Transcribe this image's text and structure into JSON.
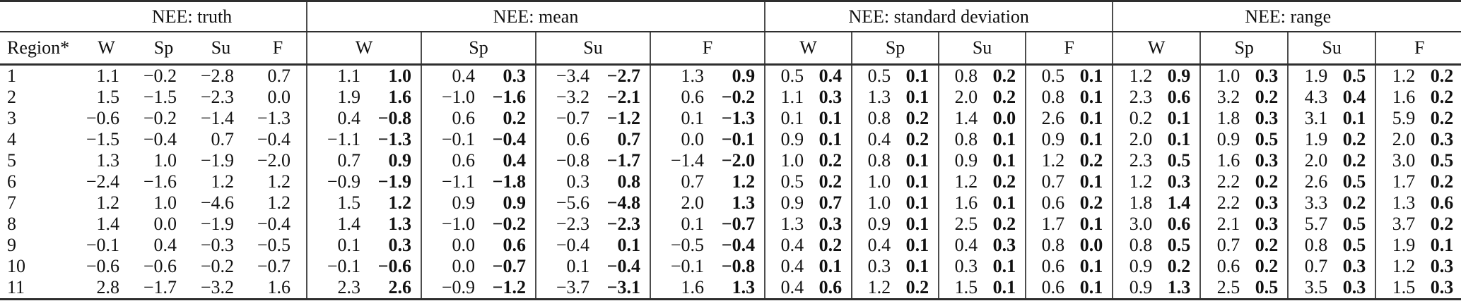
{
  "table": {
    "region_header": "Region*",
    "groups": [
      {
        "id": "truth",
        "label": "NEE: truth",
        "seasons": [
          "W",
          "Sp",
          "Su",
          "F"
        ]
      },
      {
        "id": "mean",
        "label": "NEE: mean",
        "seasons": [
          "W",
          "Sp",
          "Su",
          "F"
        ]
      },
      {
        "id": "sd",
        "label": "NEE: standard deviation",
        "seasons": [
          "W",
          "Sp",
          "Su",
          "F"
        ]
      },
      {
        "id": "range",
        "label": "NEE: range",
        "seasons": [
          "W",
          "Sp",
          "Su",
          "F"
        ]
      }
    ],
    "rows": [
      {
        "region": "1",
        "truth": [
          "1.1",
          "−0.2",
          "−2.8",
          "0.7"
        ],
        "mean": [
          [
            "1.1",
            "1.0"
          ],
          [
            "0.4",
            "0.3"
          ],
          [
            "−3.4",
            "−2.7"
          ],
          [
            "1.3",
            "0.9"
          ]
        ],
        "sd": [
          [
            "0.5",
            "0.4"
          ],
          [
            "0.5",
            "0.1"
          ],
          [
            "0.8",
            "0.2"
          ],
          [
            "0.5",
            "0.1"
          ]
        ],
        "range": [
          [
            "1.2",
            "0.9"
          ],
          [
            "1.0",
            "0.3"
          ],
          [
            "1.9",
            "0.5"
          ],
          [
            "1.2",
            "0.2"
          ]
        ]
      },
      {
        "region": "2",
        "truth": [
          "1.5",
          "−1.5",
          "−2.3",
          "0.0"
        ],
        "mean": [
          [
            "1.9",
            "1.6"
          ],
          [
            "−1.0",
            "−1.6"
          ],
          [
            "−3.2",
            "−2.1"
          ],
          [
            "0.6",
            "−0.2"
          ]
        ],
        "sd": [
          [
            "1.1",
            "0.3"
          ],
          [
            "1.3",
            "0.1"
          ],
          [
            "2.0",
            "0.2"
          ],
          [
            "0.8",
            "0.1"
          ]
        ],
        "range": [
          [
            "2.3",
            "0.6"
          ],
          [
            "3.2",
            "0.2"
          ],
          [
            "4.3",
            "0.4"
          ],
          [
            "1.6",
            "0.2"
          ]
        ]
      },
      {
        "region": "3",
        "truth": [
          "−0.6",
          "−0.2",
          "−1.4",
          "−1.3"
        ],
        "mean": [
          [
            "0.4",
            "−0.8"
          ],
          [
            "0.6",
            "0.2"
          ],
          [
            "−0.7",
            "−1.2"
          ],
          [
            "0.1",
            "−1.3"
          ]
        ],
        "sd": [
          [
            "0.1",
            "0.1"
          ],
          [
            "0.8",
            "0.2"
          ],
          [
            "1.4",
            "0.0"
          ],
          [
            "2.6",
            "0.1"
          ]
        ],
        "range": [
          [
            "0.2",
            "0.1"
          ],
          [
            "1.8",
            "0.3"
          ],
          [
            "3.1",
            "0.1"
          ],
          [
            "5.9",
            "0.2"
          ]
        ]
      },
      {
        "region": "4",
        "truth": [
          "−1.5",
          "−0.4",
          "0.7",
          "−0.4"
        ],
        "mean": [
          [
            "−1.1",
            "−1.3"
          ],
          [
            "−0.1",
            "−0.4"
          ],
          [
            "0.6",
            "0.7"
          ],
          [
            "0.0",
            "−0.1"
          ]
        ],
        "sd": [
          [
            "0.9",
            "0.1"
          ],
          [
            "0.4",
            "0.2"
          ],
          [
            "0.8",
            "0.1"
          ],
          [
            "0.9",
            "0.1"
          ]
        ],
        "range": [
          [
            "2.0",
            "0.1"
          ],
          [
            "0.9",
            "0.5"
          ],
          [
            "1.9",
            "0.2"
          ],
          [
            "2.0",
            "0.3"
          ]
        ]
      },
      {
        "region": "5",
        "truth": [
          "1.3",
          "1.0",
          "−1.9",
          "−2.0"
        ],
        "mean": [
          [
            "0.7",
            "0.9"
          ],
          [
            "0.6",
            "0.4"
          ],
          [
            "−0.8",
            "−1.7"
          ],
          [
            "−1.4",
            "−2.0"
          ]
        ],
        "sd": [
          [
            "1.0",
            "0.2"
          ],
          [
            "0.8",
            "0.1"
          ],
          [
            "0.9",
            "0.1"
          ],
          [
            "1.2",
            "0.2"
          ]
        ],
        "range": [
          [
            "2.3",
            "0.5"
          ],
          [
            "1.6",
            "0.3"
          ],
          [
            "2.0",
            "0.2"
          ],
          [
            "3.0",
            "0.5"
          ]
        ]
      },
      {
        "region": "6",
        "truth": [
          "−2.4",
          "−1.6",
          "1.2",
          "1.2"
        ],
        "mean": [
          [
            "−0.9",
            "−1.9"
          ],
          [
            "−1.1",
            "−1.8"
          ],
          [
            "0.3",
            "0.8"
          ],
          [
            "0.7",
            "1.2"
          ]
        ],
        "sd": [
          [
            "0.5",
            "0.2"
          ],
          [
            "1.0",
            "0.1"
          ],
          [
            "1.2",
            "0.2"
          ],
          [
            "0.7",
            "0.1"
          ]
        ],
        "range": [
          [
            "1.2",
            "0.3"
          ],
          [
            "2.2",
            "0.2"
          ],
          [
            "2.6",
            "0.5"
          ],
          [
            "1.7",
            "0.2"
          ]
        ]
      },
      {
        "region": "7",
        "truth": [
          "1.2",
          "1.0",
          "−4.6",
          "1.2"
        ],
        "mean": [
          [
            "1.5",
            "1.2"
          ],
          [
            "0.9",
            "0.9"
          ],
          [
            "−5.6",
            "−4.8"
          ],
          [
            "2.0",
            "1.3"
          ]
        ],
        "sd": [
          [
            "0.9",
            "0.7"
          ],
          [
            "1.0",
            "0.1"
          ],
          [
            "1.6",
            "0.1"
          ],
          [
            "0.6",
            "0.2"
          ]
        ],
        "range": [
          [
            "1.8",
            "1.4"
          ],
          [
            "2.2",
            "0.3"
          ],
          [
            "3.3",
            "0.2"
          ],
          [
            "1.3",
            "0.6"
          ]
        ]
      },
      {
        "region": "8",
        "truth": [
          "1.4",
          "0.0",
          "−1.9",
          "−0.4"
        ],
        "mean": [
          [
            "1.4",
            "1.3"
          ],
          [
            "−1.0",
            "−0.2"
          ],
          [
            "−2.3",
            "−2.3"
          ],
          [
            "0.1",
            "−0.7"
          ]
        ],
        "sd": [
          [
            "1.3",
            "0.3"
          ],
          [
            "0.9",
            "0.1"
          ],
          [
            "2.5",
            "0.2"
          ],
          [
            "1.7",
            "0.1"
          ]
        ],
        "range": [
          [
            "3.0",
            "0.6"
          ],
          [
            "2.1",
            "0.3"
          ],
          [
            "5.7",
            "0.5"
          ],
          [
            "3.7",
            "0.2"
          ]
        ]
      },
      {
        "region": "9",
        "truth": [
          "−0.1",
          "0.4",
          "−0.3",
          "−0.5"
        ],
        "mean": [
          [
            "0.1",
            "0.3"
          ],
          [
            "0.0",
            "0.6"
          ],
          [
            "−0.4",
            "0.1"
          ],
          [
            "−0.5",
            "−0.4"
          ]
        ],
        "sd": [
          [
            "0.4",
            "0.2"
          ],
          [
            "0.4",
            "0.1"
          ],
          [
            "0.4",
            "0.3"
          ],
          [
            "0.8",
            "0.0"
          ]
        ],
        "range": [
          [
            "0.8",
            "0.5"
          ],
          [
            "0.7",
            "0.2"
          ],
          [
            "0.8",
            "0.5"
          ],
          [
            "1.9",
            "0.1"
          ]
        ]
      },
      {
        "region": "10",
        "truth": [
          "−0.6",
          "−0.6",
          "−0.2",
          "−0.7"
        ],
        "mean": [
          [
            "−0.1",
            "−0.6"
          ],
          [
            "0.0",
            "−0.7"
          ],
          [
            "0.1",
            "−0.4"
          ],
          [
            "−0.1",
            "−0.8"
          ]
        ],
        "sd": [
          [
            "0.4",
            "0.1"
          ],
          [
            "0.3",
            "0.1"
          ],
          [
            "0.3",
            "0.1"
          ],
          [
            "0.6",
            "0.1"
          ]
        ],
        "range": [
          [
            "0.9",
            "0.2"
          ],
          [
            "0.6",
            "0.2"
          ],
          [
            "0.7",
            "0.3"
          ],
          [
            "1.2",
            "0.3"
          ]
        ]
      },
      {
        "region": "11",
        "truth": [
          "2.8",
          "−1.7",
          "−3.2",
          "1.6"
        ],
        "mean": [
          [
            "2.3",
            "2.6"
          ],
          [
            "−0.9",
            "−1.2"
          ],
          [
            "−3.7",
            "−3.1"
          ],
          [
            "1.6",
            "1.3"
          ]
        ],
        "sd": [
          [
            "0.4",
            "0.6"
          ],
          [
            "1.2",
            "0.2"
          ],
          [
            "1.5",
            "0.1"
          ],
          [
            "0.6",
            "0.1"
          ]
        ],
        "range": [
          [
            "0.9",
            "1.3"
          ],
          [
            "2.5",
            "0.5"
          ],
          [
            "3.5",
            "0.3"
          ],
          [
            "1.5",
            "0.3"
          ]
        ]
      }
    ]
  },
  "colors": {
    "background": "#ffffff",
    "text": "#111111",
    "horizontal_rule": "#2e2e2e",
    "vertical_separator": "#4d4d4d"
  }
}
